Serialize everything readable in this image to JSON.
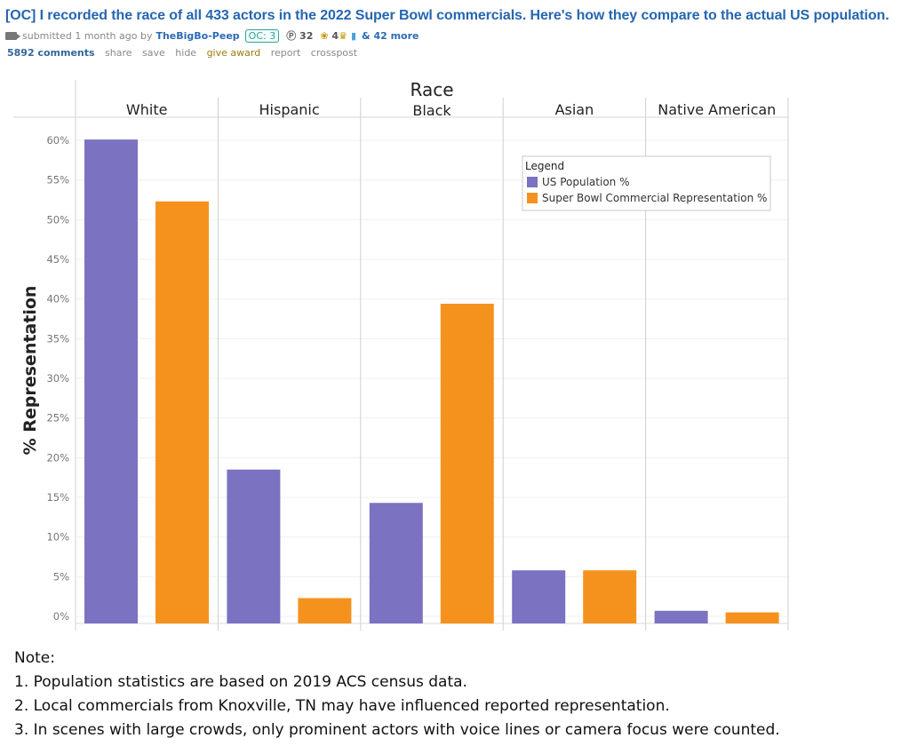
{
  "post": {
    "title": "[OC] I recorded the race of all 433 actors in the 2022 Super Bowl commercials. Here's how they compare to the actual US population.",
    "submitted": "submitted 1 month ago by",
    "author": "TheBigBo-Peep",
    "flair": "OC: 3",
    "award_1_count": "32",
    "award_2_count": "4",
    "more_awards": "& 42 more",
    "actions": {
      "comments": "5892 comments",
      "share": "share",
      "save": "save",
      "hide": "hide",
      "give_award": "give award",
      "report": "report",
      "crosspost": "crosspost"
    }
  },
  "chart_data": {
    "type": "bar",
    "title": "Race",
    "ylabel": "% Representation",
    "xlabel": "",
    "categories": [
      "White",
      "Hispanic",
      "Black",
      "Asian",
      "Native American"
    ],
    "series": [
      {
        "name": "US Population %",
        "color": "#7b72c2",
        "values": [
          60.1,
          18.5,
          14.3,
          5.8,
          0.7
        ]
      },
      {
        "name": "Super Bowl Commercial Representation %",
        "color": "#f5921e",
        "values": [
          52.3,
          2.3,
          39.4,
          5.8,
          0.5
        ]
      }
    ],
    "ylim": [
      0,
      60
    ],
    "yticks": [
      "0%",
      "5%",
      "10%",
      "15%",
      "20%",
      "25%",
      "30%",
      "35%",
      "40%",
      "45%",
      "50%",
      "55%",
      "60%"
    ],
    "legend_title": "Legend",
    "legend_position": "top-right",
    "grid": true
  },
  "notes": {
    "heading": "Note:",
    "items": [
      "1. Population statistics are based on 2019 ACS census data.",
      "2. Local commercials from Knoxville, TN may have influenced reported representation.",
      "3. In scenes with large crowds, only prominent actors with voice lines or camera focus were counted."
    ]
  }
}
